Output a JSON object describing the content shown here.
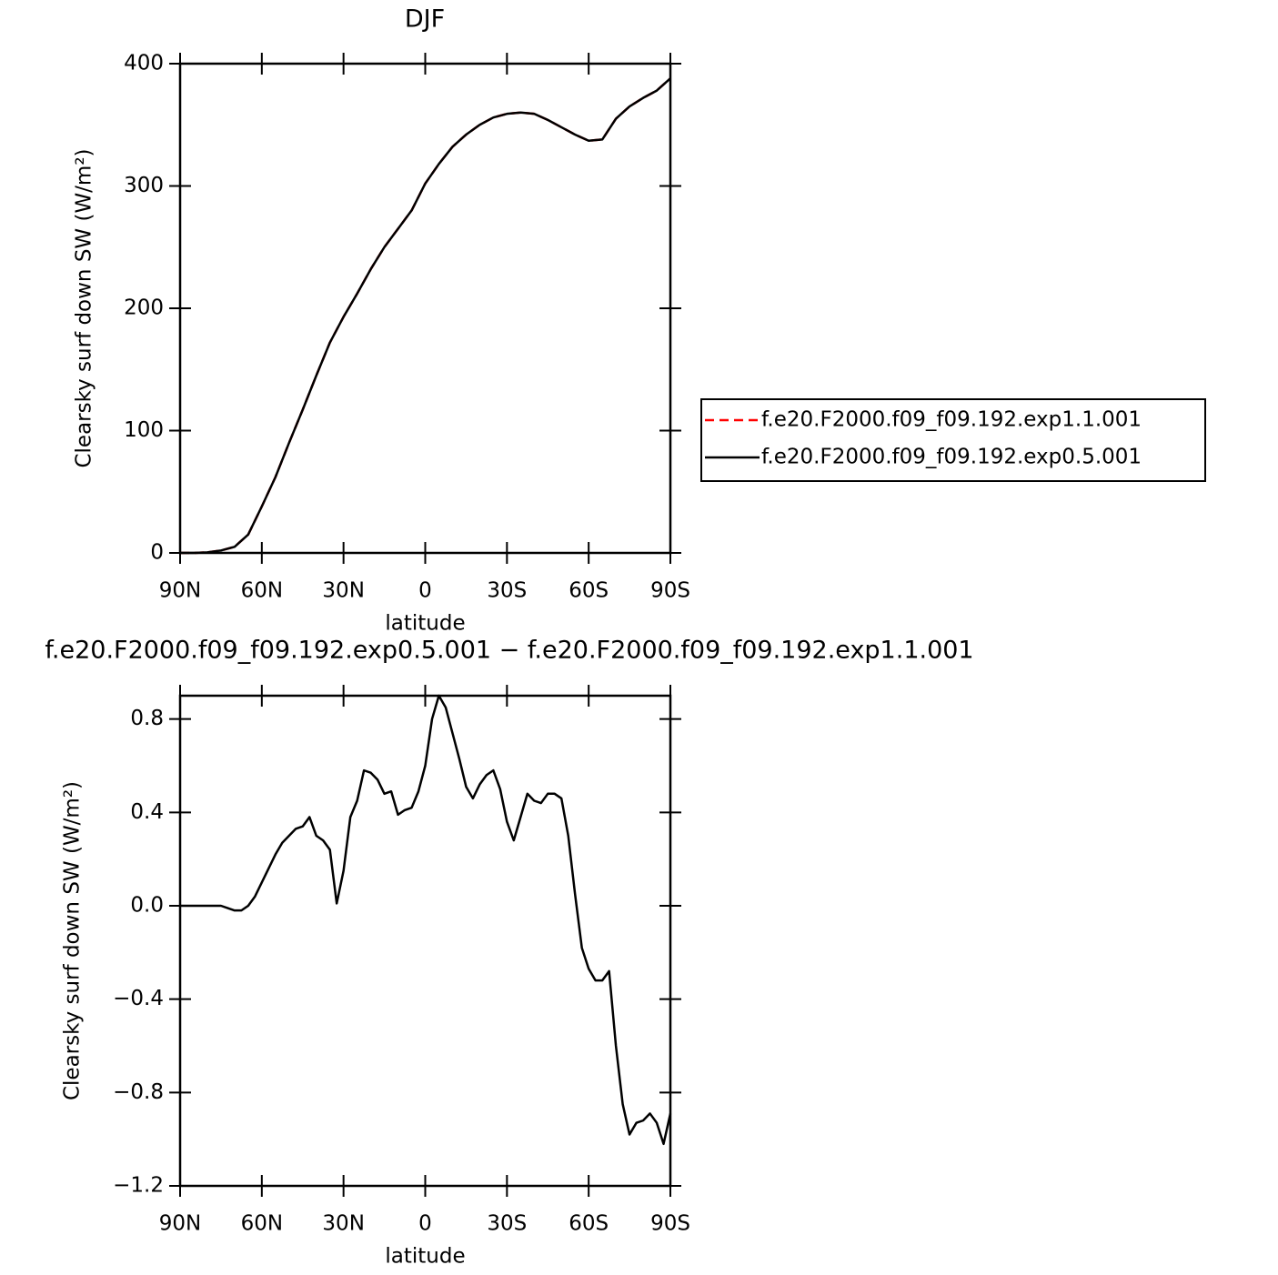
{
  "chart_data": [
    {
      "type": "line",
      "title": "DJF",
      "x_label": "latitude",
      "y_label": "Clearsky surf down SW (W/m²)",
      "x": [
        90,
        85,
        80,
        75,
        70,
        65,
        60,
        55,
        50,
        45,
        40,
        35,
        30,
        25,
        20,
        15,
        10,
        5,
        0,
        -5,
        -10,
        -15,
        -20,
        -25,
        -30,
        -35,
        -40,
        -45,
        -50,
        -55,
        -60,
        -65,
        -70,
        -75,
        -80,
        -85,
        -90
      ],
      "series": [
        {
          "name": "f.e20.F2000.f09_f09.192.exp1.1.001",
          "color": "#ff0000",
          "linestyle": "dashed",
          "values": [
            0,
            0,
            0.5,
            2,
            5,
            15,
            38,
            62,
            90,
            117,
            145,
            172,
            193,
            212,
            232,
            250,
            265,
            280,
            302,
            318,
            332,
            342,
            350,
            356,
            359,
            360,
            359,
            354,
            348,
            342,
            337,
            338,
            355,
            365,
            372,
            378,
            388
          ]
        },
        {
          "name": "f.e20.F2000.f09_f09.192.exp0.5.001",
          "color": "#000000",
          "linestyle": "solid",
          "values": [
            0,
            0,
            0.5,
            2,
            5,
            15,
            38,
            62,
            90,
            117,
            145,
            172,
            193,
            212,
            232,
            250,
            265,
            280,
            302,
            318,
            332,
            342,
            350,
            356,
            359,
            360,
            359,
            354,
            348,
            342,
            337,
            338,
            355,
            365,
            372,
            378,
            388
          ]
        }
      ],
      "xlim": [
        90,
        -90
      ],
      "xticks": [
        {
          "value": 90,
          "label": "90N"
        },
        {
          "value": 60,
          "label": "60N"
        },
        {
          "value": 30,
          "label": "30N"
        },
        0,
        {
          "value": -30,
          "label": "30S"
        },
        {
          "value": -60,
          "label": "60S"
        },
        {
          "value": -90,
          "label": "90S"
        }
      ],
      "ylim": [
        0,
        400
      ],
      "yticks": [
        0,
        100,
        200,
        300,
        400
      ],
      "legend": "right"
    },
    {
      "type": "line",
      "title": "f.e20.F2000.f09_f09.192.exp0.5.001 − f.e20.F2000.f09_f09.192.exp1.1.001",
      "x_label": "latitude",
      "y_label": "Clearsky surf down SW (W/m²)",
      "x": [
        90,
        87.5,
        85,
        82.5,
        80,
        77.5,
        75,
        72.5,
        70,
        67.5,
        65,
        62.5,
        60,
        57.5,
        55,
        52.5,
        50,
        47.5,
        45,
        42.5,
        40,
        37.5,
        35,
        32.5,
        30,
        27.5,
        25,
        22.5,
        20,
        17.5,
        15,
        12.5,
        10,
        7.5,
        5,
        2.5,
        0,
        -2.5,
        -5,
        -7.5,
        -10,
        -12.5,
        -15,
        -17.5,
        -20,
        -22.5,
        -25,
        -27.5,
        -30,
        -32.5,
        -35,
        -37.5,
        -40,
        -42.5,
        -45,
        -47.5,
        -50,
        -52.5,
        -55,
        -57.5,
        -60,
        -62.5,
        -65,
        -67.5,
        -70,
        -72.5,
        -75,
        -77.5,
        -80,
        -82.5,
        -85,
        -87.5,
        -90
      ],
      "series": [
        {
          "color": "#000000",
          "linestyle": "solid",
          "values": [
            0,
            0,
            0,
            0,
            0,
            0,
            0,
            -0.01,
            -0.02,
            -0.02,
            0,
            0.04,
            0.1,
            0.16,
            0.22,
            0.27,
            0.3,
            0.33,
            0.34,
            0.38,
            0.3,
            0.28,
            0.24,
            0.01,
            0.15,
            0.38,
            0.45,
            0.58,
            0.57,
            0.54,
            0.48,
            0.49,
            0.39,
            0.41,
            0.42,
            0.49,
            0.6,
            0.8,
            0.9,
            0.85,
            0.74,
            0.63,
            0.51,
            0.46,
            0.52,
            0.56,
            0.58,
            0.5,
            0.36,
            0.28,
            0.38,
            0.48,
            0.45,
            0.44,
            0.48,
            0.48,
            0.46,
            0.3,
            0.05,
            -0.18,
            -0.27,
            -0.32,
            -0.32,
            -0.28,
            -0.6,
            -0.85,
            -0.98,
            -0.93,
            -0.92,
            -0.89,
            -0.93,
            -1.02,
            -0.89
          ]
        }
      ],
      "xlim": [
        90,
        -90
      ],
      "xticks": [
        {
          "value": 90,
          "label": "90N"
        },
        {
          "value": 60,
          "label": "60N"
        },
        {
          "value": 30,
          "label": "30N"
        },
        0,
        {
          "value": -30,
          "label": "30S"
        },
        {
          "value": -60,
          "label": "60S"
        },
        {
          "value": -90,
          "label": "90S"
        }
      ],
      "ylim": [
        -1.2,
        0.9
      ],
      "yticks": [
        {
          "value": -1.2,
          "label": "−1.2"
        },
        {
          "value": -0.8,
          "label": "−0.8"
        },
        {
          "value": -0.4,
          "label": "−0.4"
        },
        {
          "value": 0,
          "label": "0.0"
        },
        0.4,
        0.8
      ]
    }
  ]
}
